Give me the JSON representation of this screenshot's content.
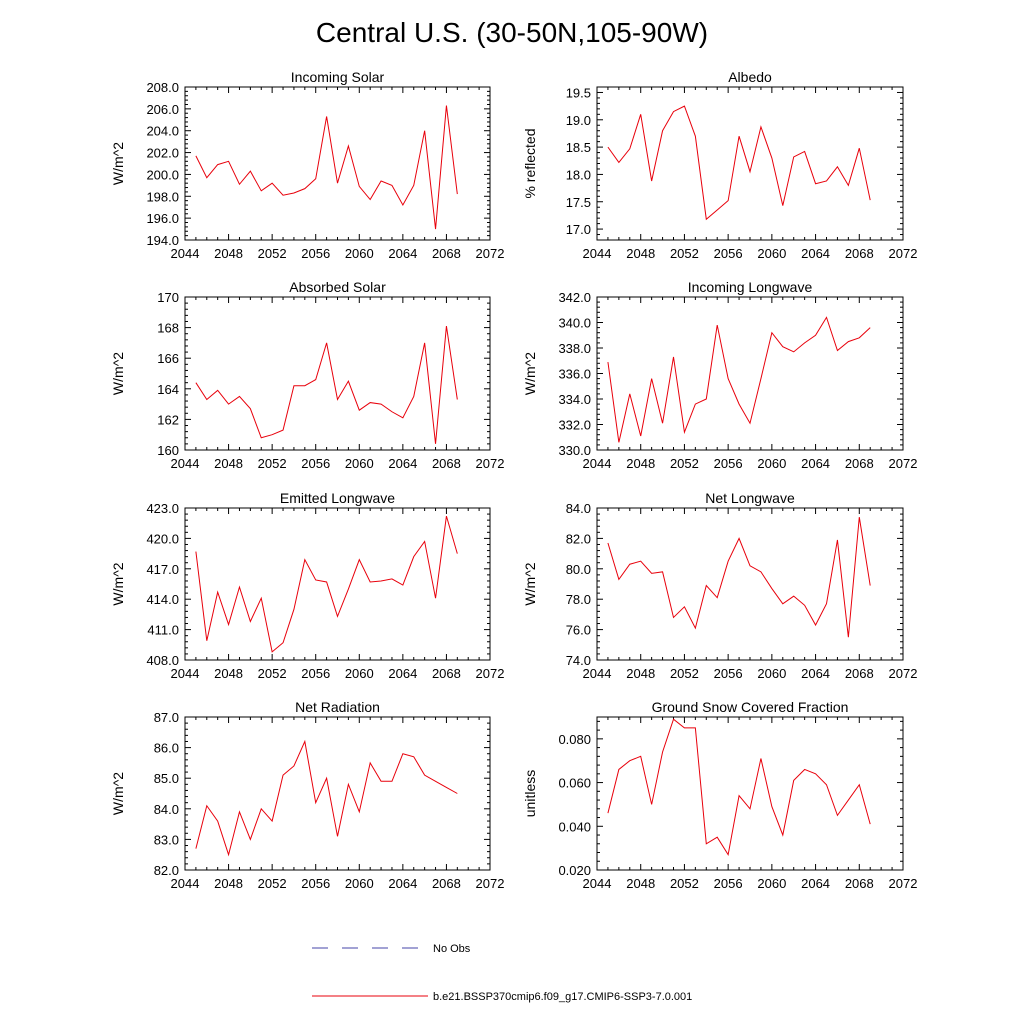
{
  "page": {
    "title": "Central U.S. (30-50N,105-90W)"
  },
  "legend": {
    "obs_label": "No Obs",
    "obs_color": "#4444aa",
    "model_label": "b.e21.BSSP370cmip6.f09_g17.CMIP6-SSP3-7.0.001",
    "model_color": "#e8000b"
  },
  "chart_data": [
    {
      "type": "line",
      "title": "Incoming Solar",
      "ylabel": "W/m^2",
      "xlim": [
        2044,
        2072
      ],
      "ylim": [
        194,
        208
      ],
      "xticks": [
        2044,
        2048,
        2052,
        2056,
        2060,
        2064,
        2068,
        2072
      ],
      "yticks": [
        194,
        196,
        198,
        200,
        202,
        204,
        206,
        208
      ],
      "ytick_labels": [
        "194.0",
        "196.0",
        "198.0",
        "200.0",
        "202.0",
        "204.0",
        "206.0",
        "208.0"
      ],
      "x": [
        2045,
        2046,
        2047,
        2048,
        2049,
        2050,
        2051,
        2052,
        2053,
        2054,
        2055,
        2056,
        2057,
        2058,
        2059,
        2060,
        2061,
        2062,
        2063,
        2064,
        2065,
        2066,
        2067,
        2068,
        2069
      ],
      "values": [
        201.7,
        199.7,
        200.9,
        201.2,
        199.1,
        200.3,
        198.5,
        199.2,
        198.1,
        198.3,
        198.7,
        199.6,
        205.3,
        199.2,
        202.6,
        198.9,
        197.7,
        199.4,
        199.0,
        197.2,
        199.0,
        204.0,
        195.0,
        206.3,
        198.2
      ]
    },
    {
      "type": "line",
      "title": "Albedo",
      "ylabel": "% reflected",
      "xlim": [
        2044,
        2072
      ],
      "ylim": [
        16.8,
        19.6
      ],
      "xticks": [
        2044,
        2048,
        2052,
        2056,
        2060,
        2064,
        2068,
        2072
      ],
      "yticks": [
        17.0,
        17.5,
        18.0,
        18.5,
        19.0,
        19.5
      ],
      "ytick_labels": [
        "17.0",
        "17.5",
        "18.0",
        "18.5",
        "19.0",
        "19.5"
      ],
      "x": [
        2045,
        2046,
        2047,
        2048,
        2049,
        2050,
        2051,
        2052,
        2053,
        2054,
        2055,
        2056,
        2057,
        2058,
        2059,
        2060,
        2061,
        2062,
        2063,
        2064,
        2065,
        2066,
        2067,
        2068,
        2069
      ],
      "values": [
        18.5,
        18.22,
        18.47,
        19.1,
        17.88,
        18.8,
        19.15,
        19.25,
        18.7,
        17.18,
        17.35,
        17.52,
        18.7,
        18.05,
        18.87,
        18.3,
        17.43,
        18.32,
        18.42,
        17.83,
        17.88,
        18.14,
        17.8,
        18.48,
        17.53
      ]
    },
    {
      "type": "line",
      "title": "Absorbed Solar",
      "ylabel": "W/m^2",
      "xlim": [
        2044,
        2072
      ],
      "ylim": [
        160,
        170
      ],
      "xticks": [
        2044,
        2048,
        2052,
        2056,
        2060,
        2064,
        2068,
        2072
      ],
      "yticks": [
        160,
        162,
        164,
        166,
        168,
        170
      ],
      "ytick_labels": [
        "160",
        "162",
        "164",
        "166",
        "168",
        "170"
      ],
      "x": [
        2045,
        2046,
        2047,
        2048,
        2049,
        2050,
        2051,
        2052,
        2053,
        2054,
        2055,
        2056,
        2057,
        2058,
        2059,
        2060,
        2061,
        2062,
        2063,
        2064,
        2065,
        2066,
        2067,
        2068,
        2069
      ],
      "values": [
        164.4,
        163.3,
        163.9,
        163.0,
        163.5,
        162.7,
        160.8,
        161.0,
        161.3,
        164.2,
        164.2,
        164.6,
        167.0,
        163.3,
        164.5,
        162.6,
        163.1,
        163.0,
        162.5,
        162.1,
        163.5,
        167.0,
        160.4,
        168.1,
        163.3
      ]
    },
    {
      "type": "line",
      "title": "Incoming Longwave",
      "ylabel": "W/m^2",
      "xlim": [
        2044,
        2072
      ],
      "ylim": [
        330,
        342
      ],
      "xticks": [
        2044,
        2048,
        2052,
        2056,
        2060,
        2064,
        2068,
        2072
      ],
      "yticks": [
        330,
        332,
        334,
        336,
        338,
        340,
        342
      ],
      "ytick_labels": [
        "330.0",
        "332.0",
        "334.0",
        "336.0",
        "338.0",
        "340.0",
        "342.0"
      ],
      "x": [
        2045,
        2046,
        2047,
        2048,
        2049,
        2050,
        2051,
        2052,
        2053,
        2054,
        2055,
        2056,
        2057,
        2058,
        2059,
        2060,
        2061,
        2062,
        2063,
        2064,
        2065,
        2066,
        2067,
        2068,
        2069
      ],
      "values": [
        336.9,
        330.6,
        334.4,
        331.1,
        335.6,
        332.1,
        337.3,
        331.4,
        333.6,
        334.0,
        339.8,
        335.6,
        333.6,
        332.1,
        335.6,
        339.2,
        338.1,
        337.7,
        338.4,
        339.0,
        340.4,
        337.8,
        338.5,
        338.8,
        339.6
      ]
    },
    {
      "type": "line",
      "title": "Emitted Longwave",
      "ylabel": "W/m^2",
      "xlim": [
        2044,
        2072
      ],
      "ylim": [
        408,
        423
      ],
      "xticks": [
        2044,
        2048,
        2052,
        2056,
        2060,
        2064,
        2068,
        2072
      ],
      "yticks": [
        408,
        411,
        414,
        417,
        420,
        423
      ],
      "ytick_labels": [
        "408.0",
        "411.0",
        "414.0",
        "417.0",
        "420.0",
        "423.0"
      ],
      "x": [
        2045,
        2046,
        2047,
        2048,
        2049,
        2050,
        2051,
        2052,
        2053,
        2054,
        2055,
        2056,
        2057,
        2058,
        2059,
        2060,
        2061,
        2062,
        2063,
        2064,
        2065,
        2066,
        2067,
        2068,
        2069
      ],
      "values": [
        418.7,
        409.9,
        414.7,
        411.5,
        415.2,
        411.8,
        414.1,
        408.8,
        409.7,
        413.0,
        417.9,
        415.9,
        415.7,
        412.3,
        415.0,
        417.9,
        415.7,
        415.8,
        416.0,
        415.4,
        418.2,
        419.7,
        414.1,
        422.2,
        418.5
      ]
    },
    {
      "type": "line",
      "title": "Net Longwave",
      "ylabel": "W/m^2",
      "xlim": [
        2044,
        2072
      ],
      "ylim": [
        74,
        84
      ],
      "xticks": [
        2044,
        2048,
        2052,
        2056,
        2060,
        2064,
        2068,
        2072
      ],
      "yticks": [
        74,
        76,
        78,
        80,
        82,
        84
      ],
      "ytick_labels": [
        "74.0",
        "76.0",
        "78.0",
        "80.0",
        "82.0",
        "84.0"
      ],
      "x": [
        2045,
        2046,
        2047,
        2048,
        2049,
        2050,
        2051,
        2052,
        2053,
        2054,
        2055,
        2056,
        2057,
        2058,
        2059,
        2060,
        2061,
        2062,
        2063,
        2064,
        2065,
        2066,
        2067,
        2068,
        2069
      ],
      "values": [
        81.7,
        79.3,
        80.3,
        80.5,
        79.7,
        79.8,
        76.8,
        77.5,
        76.1,
        78.9,
        78.1,
        80.5,
        82.0,
        80.2,
        79.8,
        78.7,
        77.7,
        78.2,
        77.6,
        76.3,
        77.7,
        81.9,
        75.5,
        83.4,
        78.9
      ]
    },
    {
      "type": "line",
      "title": "Net Radiation",
      "ylabel": "W/m^2",
      "xlim": [
        2044,
        2072
      ],
      "ylim": [
        82,
        87
      ],
      "xticks": [
        2044,
        2048,
        2052,
        2056,
        2060,
        2064,
        2068,
        2072
      ],
      "yticks": [
        82,
        83,
        84,
        85,
        86,
        87
      ],
      "ytick_labels": [
        "82.0",
        "83.0",
        "84.0",
        "85.0",
        "86.0",
        "87.0"
      ],
      "x": [
        2045,
        2046,
        2047,
        2048,
        2049,
        2050,
        2051,
        2052,
        2053,
        2054,
        2055,
        2056,
        2057,
        2058,
        2059,
        2060,
        2061,
        2062,
        2063,
        2064,
        2065,
        2066,
        2067,
        2068,
        2069
      ],
      "values": [
        82.7,
        84.1,
        83.6,
        82.5,
        83.9,
        83.0,
        84.0,
        83.6,
        85.1,
        85.4,
        86.2,
        84.2,
        85.0,
        83.1,
        84.8,
        83.9,
        85.5,
        84.9,
        84.9,
        85.8,
        85.7,
        85.1,
        84.9,
        84.7,
        84.5
      ]
    },
    {
      "type": "line",
      "title": "Ground Snow Covered Fraction",
      "ylabel": "unitless",
      "xlim": [
        2044,
        2072
      ],
      "ylim": [
        0.02,
        0.09
      ],
      "xticks": [
        2044,
        2048,
        2052,
        2056,
        2060,
        2064,
        2068,
        2072
      ],
      "yticks": [
        0.02,
        0.04,
        0.06,
        0.08
      ],
      "ytick_labels": [
        "0.020",
        "0.040",
        "0.060",
        "0.080"
      ],
      "x": [
        2045,
        2046,
        2047,
        2048,
        2049,
        2050,
        2051,
        2052,
        2053,
        2054,
        2055,
        2056,
        2057,
        2058,
        2059,
        2060,
        2061,
        2062,
        2063,
        2064,
        2065,
        2066,
        2067,
        2068,
        2069
      ],
      "values": [
        0.046,
        0.066,
        0.07,
        0.072,
        0.05,
        0.074,
        0.089,
        0.085,
        0.085,
        0.032,
        0.035,
        0.027,
        0.054,
        0.048,
        0.071,
        0.049,
        0.036,
        0.061,
        0.066,
        0.064,
        0.059,
        0.045,
        0.052,
        0.059,
        0.041
      ]
    }
  ]
}
